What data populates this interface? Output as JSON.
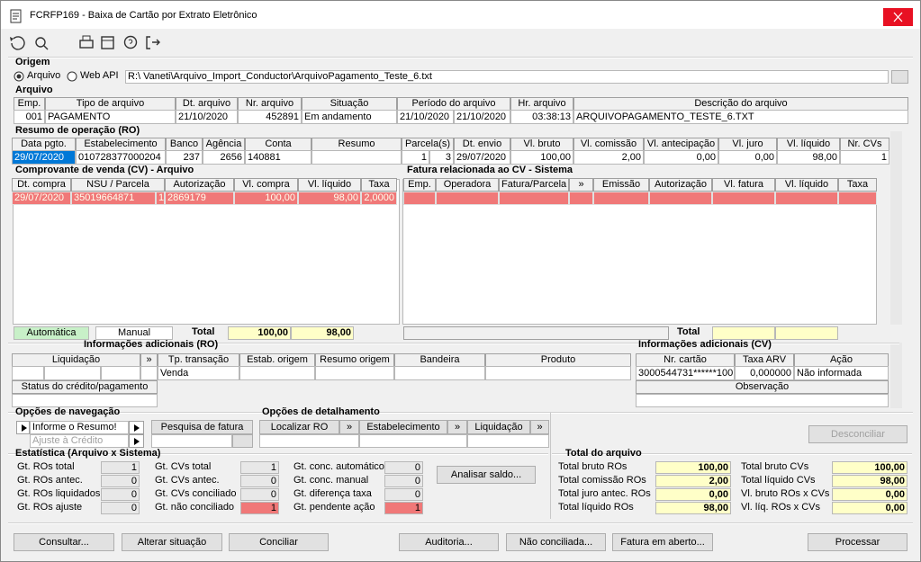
{
  "window": {
    "title": "FCRFP169 - Baixa de Cartão por Extrato Eletrônico"
  },
  "origem": {
    "title": "Origem",
    "options": [
      "Arquivo",
      "Web API"
    ],
    "path": "R:\\ Vaneti\\Arquivo_Import_Conductor\\ArquivoPagamento_Teste_6.txt"
  },
  "arquivo": {
    "title": "Arquivo",
    "headers": [
      "Emp.",
      "Tipo de arquivo",
      "Dt. arquivo",
      "Nr. arquivo",
      "Situação",
      "Período do arquivo",
      "Hr. arquivo",
      "Descrição do arquivo"
    ],
    "row": [
      "001",
      "PAGAMENTO",
      "21/10/2020",
      "452891",
      "Em andamento",
      "21/10/2020",
      "21/10/2020",
      "03:38:13",
      "ARQUIVOPAGAMENTO_TESTE_6.TXT"
    ]
  },
  "resumo": {
    "title": "Resumo de operação (RO)",
    "headers": [
      "Data pgto.",
      "Estabelecimento",
      "Banco",
      "Agência",
      "Conta",
      "Resumo",
      "Parcela(s)",
      "Dt. envio",
      "Vl. bruto",
      "Vl. comissão",
      "Vl. antecipação",
      "Vl. juro",
      "Vl. líquido",
      "Nr. CVs"
    ],
    "row": [
      "29/07/2020",
      "010728377000204",
      "237",
      "2656",
      "140881",
      "1",
      "3",
      "29/07/2020",
      "100,00",
      "2,00",
      "0,00",
      "0,00",
      "98,00",
      "1"
    ]
  },
  "comprovante": {
    "title": "Comprovante de venda (CV) - Arquivo",
    "headers": [
      "Dt. compra",
      "NSU / Parcela",
      "Autorização",
      "Vl. compra",
      "Vl. líquido",
      "Taxa"
    ],
    "row": [
      "29/07/2020",
      "35019664871",
      "1",
      "2869179",
      "100,00",
      "98,00",
      "2,0000"
    ],
    "automatica": "Automática",
    "manual": "Manual",
    "total_label": "Total",
    "total_compra": "100,00",
    "total_liquido": "98,00"
  },
  "fatura": {
    "title": "Fatura relacionada ao CV - Sistema",
    "headers": [
      "Emp.",
      "Operadora",
      "Fatura/Parcela",
      "»",
      "Emissão",
      "Autorização",
      "Vl. fatura",
      "Vl. líquido",
      "Taxa"
    ],
    "total_label": "Total"
  },
  "info_ro": {
    "title": "Informações adicionais (RO)",
    "headers": [
      "Liquidação",
      "»",
      "Tp. transação",
      "Estab. origem",
      "Resumo origem",
      "Bandeira",
      "Produto"
    ],
    "tp_transacao": "Venda",
    "status_label": "Status do crédito/pagamento"
  },
  "info_cv": {
    "title": "Informações adicionais (CV)",
    "headers": [
      "Nr. cartão",
      "Taxa ARV",
      "Ação"
    ],
    "row": [
      "3000544731******100",
      "0,000000",
      "Não informada"
    ],
    "observacao": "Observação"
  },
  "navegacao": {
    "title": "Opções de navegação",
    "resumo": "Informe o Resumo!",
    "ajuste": "Ajuste à Crédito",
    "pesquisa": "Pesquisa de fatura"
  },
  "detalhamento": {
    "title": "Opções de detalhamento",
    "buttons": [
      "Localizar RO",
      "»",
      "Estabelecimento",
      "»",
      "Liquidação",
      "»"
    ],
    "desconciliar": "Desconciliar"
  },
  "estatistica": {
    "title": "Estatística (Arquivo x Sistema)",
    "items": [
      [
        "Gt. ROs total",
        "1"
      ],
      [
        "Gt. ROs antec.",
        "0"
      ],
      [
        "Gt. ROs liquidados",
        "0"
      ],
      [
        "Gt. ROs ajuste",
        "0"
      ],
      [
        "Gt. CVs total",
        "1"
      ],
      [
        "Gt. CVs antec.",
        "0"
      ],
      [
        "Gt. CVs conciliado",
        "0"
      ],
      [
        "Gt. não conciliado",
        "1"
      ],
      [
        "Gt. conc. automático",
        "0"
      ],
      [
        "Gt. conc. manual",
        "0"
      ],
      [
        "Gt. diferença taxa",
        "0"
      ],
      [
        "Gt. pendente ação",
        "1"
      ]
    ],
    "analisar": "Analisar saldo..."
  },
  "total_arquivo": {
    "title": "Total do arquivo",
    "items": [
      [
        "Total bruto ROs",
        "100,00"
      ],
      [
        "Total comissão ROs",
        "2,00"
      ],
      [
        "Total juro antec. ROs",
        "0,00"
      ],
      [
        "Total líquido ROs",
        "98,00"
      ],
      [
        "Total bruto CVs",
        "100,00"
      ],
      [
        "Total líquido CVs",
        "98,00"
      ],
      [
        "Vl. bruto ROs x CVs",
        "0,00"
      ],
      [
        "Vl. líq. ROs x CVs",
        "0,00"
      ]
    ]
  },
  "buttons": [
    "Consultar...",
    "Alterar situação",
    "Conciliar",
    "Auditoria...",
    "Não conciliada...",
    "Fatura em aberto...",
    "Processar"
  ]
}
